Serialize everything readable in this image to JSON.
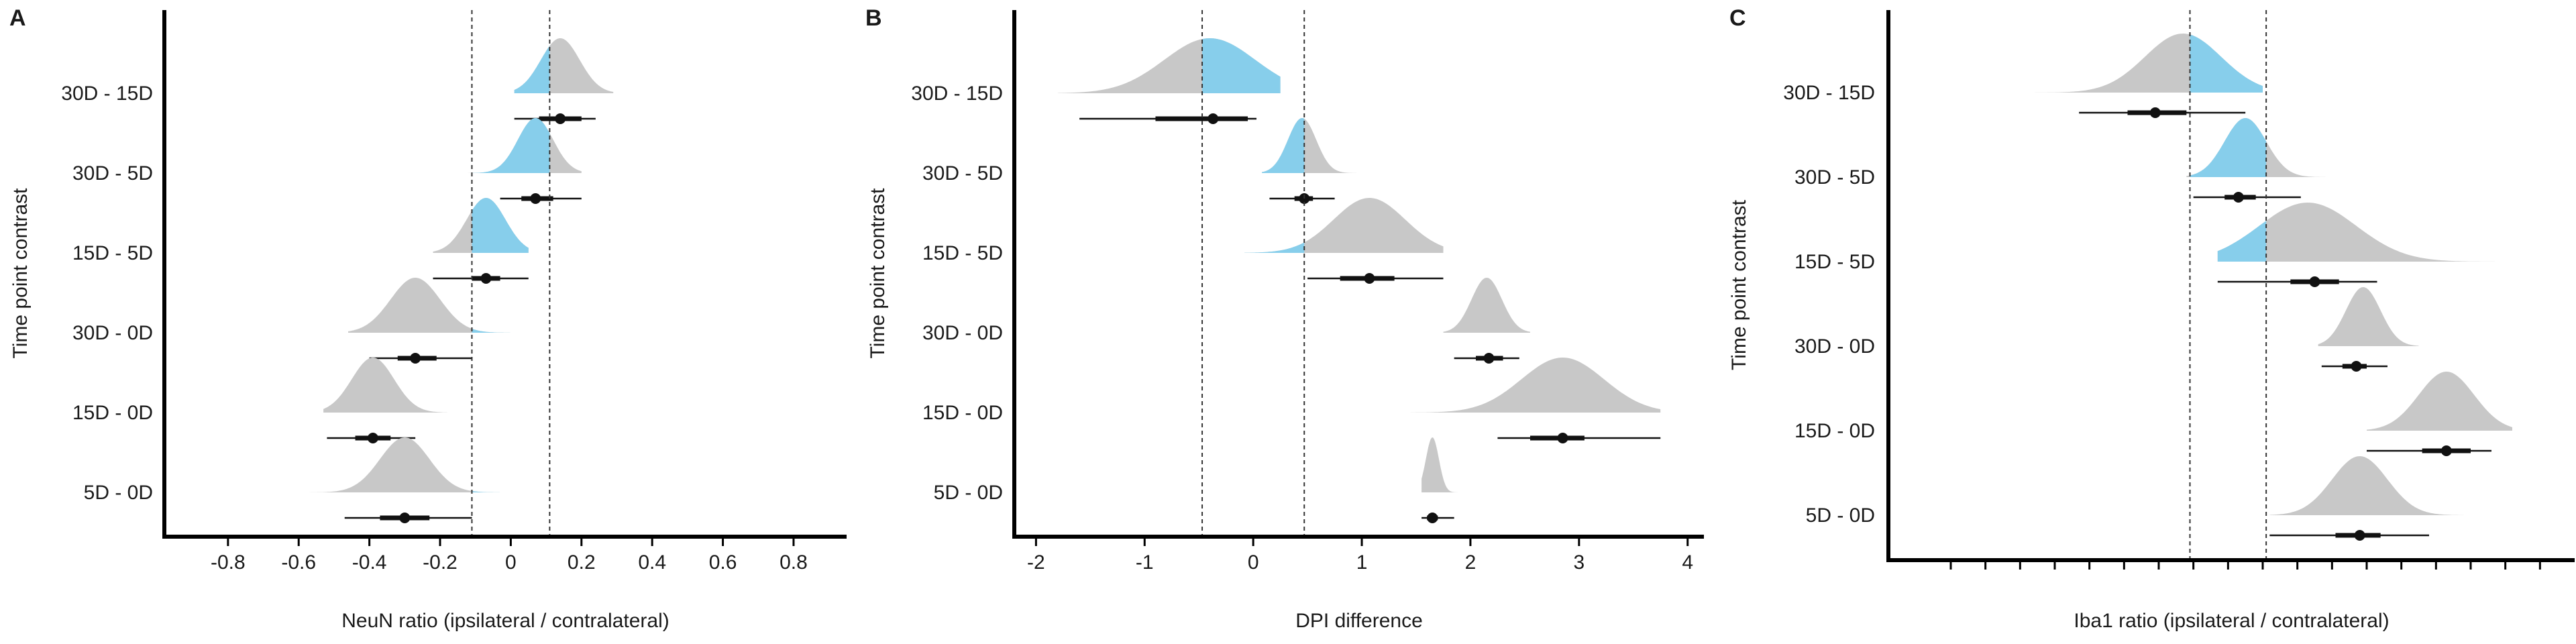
{
  "chart_data": [
    {
      "panel": "A",
      "type": "halfeye",
      "xlabel": "NeuN ratio (ipsilateral / contralateral)",
      "ylabel": "Time point contrast",
      "xlim": [
        -0.98,
        0.95
      ],
      "xticks": [
        -0.8,
        -0.6,
        -0.4,
        -0.2,
        0,
        0.2,
        0.4,
        0.6,
        0.8
      ],
      "xtick_labels": [
        "-0.8",
        "-0.6",
        "-0.4",
        "-0.2",
        "0",
        "0.2",
        "0.4",
        "0.6",
        "0.8"
      ],
      "rope": [
        -0.11,
        0.11
      ],
      "categories": [
        "30D - 15D",
        "30D - 5D",
        "15D - 5D",
        "30D - 0D",
        "15D - 0D",
        "5D - 0D"
      ],
      "estimates": [
        {
          "label": "30D - 15D",
          "point": 0.14,
          "ci66": [
            0.08,
            0.2
          ],
          "ci95": [
            0.01,
            0.24
          ],
          "dist_range": [
            0.01,
            0.29
          ],
          "dist_mode": 0.14,
          "dist_sd": 0.055
        },
        {
          "label": "30D - 5D",
          "point": 0.07,
          "ci66": [
            0.03,
            0.12
          ],
          "ci95": [
            -0.03,
            0.2
          ],
          "dist_range": [
            -0.14,
            0.2
          ],
          "dist_mode": 0.07,
          "dist_sd": 0.05
        },
        {
          "label": "15D - 5D",
          "point": -0.07,
          "ci66": [
            -0.11,
            -0.03
          ],
          "ci95": [
            -0.22,
            0.05
          ],
          "dist_range": [
            -0.22,
            0.05
          ],
          "dist_mode": -0.07,
          "dist_sd": 0.055
        },
        {
          "label": "30D - 0D",
          "point": -0.27,
          "ci66": [
            -0.32,
            -0.21
          ],
          "ci95": [
            -0.4,
            -0.11
          ],
          "dist_range": [
            -0.46,
            0.0
          ],
          "dist_mode": -0.27,
          "dist_sd": 0.07
        },
        {
          "label": "15D - 0D",
          "point": -0.39,
          "ci66": [
            -0.44,
            -0.34
          ],
          "ci95": [
            -0.52,
            -0.27
          ],
          "dist_range": [
            -0.53,
            -0.18
          ],
          "dist_mode": -0.39,
          "dist_sd": 0.06
        },
        {
          "label": "5D - 0D",
          "point": -0.3,
          "ci66": [
            -0.37,
            -0.23
          ],
          "ci95": [
            -0.47,
            -0.11
          ],
          "dist_range": [
            -0.58,
            0.0
          ],
          "dist_mode": -0.3,
          "dist_sd": 0.07
        }
      ]
    },
    {
      "panel": "B",
      "type": "halfeye",
      "xlabel": "DPI difference",
      "ylabel": "Time point contrast",
      "xlim": [
        -2.2,
        4.15
      ],
      "xticks": [
        -2,
        -1,
        0,
        1,
        2,
        3,
        4
      ],
      "xtick_labels": [
        "-2",
        "-1",
        "0",
        "1",
        "2",
        "3",
        "4"
      ],
      "rope": [
        -0.47,
        0.47
      ],
      "categories": [
        "30D - 15D",
        "30D - 5D",
        "15D - 5D",
        "30D - 0D",
        "15D - 0D",
        "5D - 0D"
      ],
      "estimates": [
        {
          "label": "30D - 15D",
          "point": -0.37,
          "ci66": [
            -0.9,
            -0.05
          ],
          "ci95": [
            -1.6,
            0.03
          ],
          "dist_range": [
            -1.8,
            0.25
          ],
          "dist_mode": -0.4,
          "dist_sd": 0.42
        },
        {
          "label": "30D - 5D",
          "point": 0.47,
          "ci66": [
            0.38,
            0.55
          ],
          "ci95": [
            0.15,
            0.75
          ],
          "dist_range": [
            0.08,
            0.95
          ],
          "dist_mode": 0.45,
          "dist_sd": 0.13
        },
        {
          "label": "15D - 5D",
          "point": 1.07,
          "ci66": [
            0.8,
            1.3
          ],
          "ci95": [
            0.5,
            1.75
          ],
          "dist_range": [
            -0.08,
            1.75
          ],
          "dist_mode": 1.07,
          "dist_sd": 0.33
        },
        {
          "label": "30D - 0D",
          "point": 2.17,
          "ci66": [
            2.05,
            2.3
          ],
          "ci95": [
            1.85,
            2.45
          ],
          "dist_range": [
            1.75,
            2.55
          ],
          "dist_mode": 2.15,
          "dist_sd": 0.14
        },
        {
          "label": "15D - 0D",
          "point": 2.85,
          "ci66": [
            2.55,
            3.05
          ],
          "ci95": [
            2.25,
            3.75
          ],
          "dist_range": [
            1.45,
            3.75
          ],
          "dist_mode": 2.85,
          "dist_sd": 0.38
        },
        {
          "label": "5D - 0D",
          "point": 1.65,
          "ci66": [
            1.6,
            1.7
          ],
          "ci95": [
            1.55,
            1.85
          ],
          "dist_range": [
            1.55,
            2.2
          ],
          "dist_mode": 1.65,
          "dist_sd": 0.06
        }
      ]
    },
    {
      "panel": "C",
      "type": "halfeye",
      "xlabel": "Iba1 ratio (ipsilateral / contralateral)",
      "ylabel": "Time point contrast",
      "xlim": [
        -0.98,
        1.0
      ],
      "xticks": [
        -0.8,
        -0.7,
        -0.6,
        -0.5,
        -0.4,
        -0.3,
        -0.2,
        -0.1,
        0,
        0.1,
        0.2,
        0.3,
        0.4,
        0.5,
        0.6,
        0.7,
        0.8,
        0.9
      ],
      "rope": [
        -0.11,
        0.11
      ],
      "categories": [
        "30D - 15D",
        "30D - 5D",
        "15D - 5D",
        "30D - 0D",
        "15D - 0D",
        "5D - 0D"
      ],
      "estimates": [
        {
          "label": "30D - 15D",
          "point": -0.21,
          "ci66": [
            -0.29,
            -0.12
          ],
          "ci95": [
            -0.43,
            0.05
          ],
          "dist_range": [
            -0.62,
            0.1
          ],
          "dist_mode": -0.13,
          "dist_sd": 0.11
        },
        {
          "label": "30D - 5D",
          "point": 0.03,
          "ci66": [
            -0.01,
            0.08
          ],
          "ci95": [
            -0.1,
            0.21
          ],
          "dist_range": [
            -0.12,
            0.3
          ],
          "dist_mode": 0.05,
          "dist_sd": 0.06
        },
        {
          "label": "15D - 5D",
          "point": 0.25,
          "ci66": [
            0.18,
            0.32
          ],
          "ci95": [
            -0.03,
            0.43
          ],
          "dist_range": [
            -0.03,
            0.77
          ],
          "dist_mode": 0.23,
          "dist_sd": 0.14
        },
        {
          "label": "30D - 0D",
          "point": 0.37,
          "ci66": [
            0.33,
            0.4
          ],
          "ci95": [
            0.27,
            0.46
          ],
          "dist_range": [
            0.26,
            0.55
          ],
          "dist_mode": 0.39,
          "dist_sd": 0.05
        },
        {
          "label": "15D - 0D",
          "point": 0.63,
          "ci66": [
            0.56,
            0.7
          ],
          "ci95": [
            0.4,
            0.76
          ],
          "dist_range": [
            0.4,
            0.82
          ],
          "dist_mode": 0.63,
          "dist_sd": 0.08
        },
        {
          "label": "5D - 0D",
          "point": 0.38,
          "ci66": [
            0.31,
            0.44
          ],
          "ci95": [
            0.12,
            0.58
          ],
          "dist_range": [
            0.12,
            0.68
          ],
          "dist_mode": 0.38,
          "dist_sd": 0.08
        }
      ]
    }
  ],
  "colors": {
    "inside_rope": "#87ceeb",
    "outside_rope": "#c8c8c8",
    "interval": "#111111",
    "axis": "#000000"
  }
}
